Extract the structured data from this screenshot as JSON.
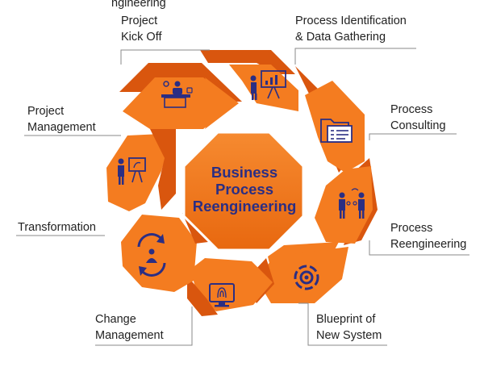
{
  "header_fragment": "ngineering",
  "center": {
    "title_lines": [
      "Business",
      "Process",
      "Reengineering"
    ]
  },
  "stages": [
    {
      "lines": [
        "Project",
        "Kick Off"
      ],
      "icon": "meeting-desk-icon"
    },
    {
      "lines": [
        "Process Identification",
        "& Data Gathering"
      ],
      "icon": "presentation-board-icon"
    },
    {
      "lines": [
        "Process",
        "Consulting"
      ],
      "icon": "folder-document-icon"
    },
    {
      "lines": [
        "Process",
        "Reengineering"
      ],
      "icon": "two-people-exchange-icon"
    },
    {
      "lines": [
        "Blueprint of",
        "New System"
      ],
      "icon": "gear-cycle-icon"
    },
    {
      "lines": [
        "Change",
        "Management"
      ],
      "icon": "monitor-fingerprint-icon"
    },
    {
      "lines": [
        "Transformation"
      ],
      "icon": "person-rotate-icon"
    },
    {
      "lines": [
        "Project",
        "Management"
      ],
      "icon": "presenter-chart-icon"
    }
  ],
  "colors": {
    "orange": "#f47c20",
    "dark_orange": "#d9560e",
    "center_fill": "#f47c20",
    "center_text": "#2b2e83",
    "icon": "#2b2e83",
    "label_text": "#222222",
    "leader": "#8a8a8a"
  }
}
